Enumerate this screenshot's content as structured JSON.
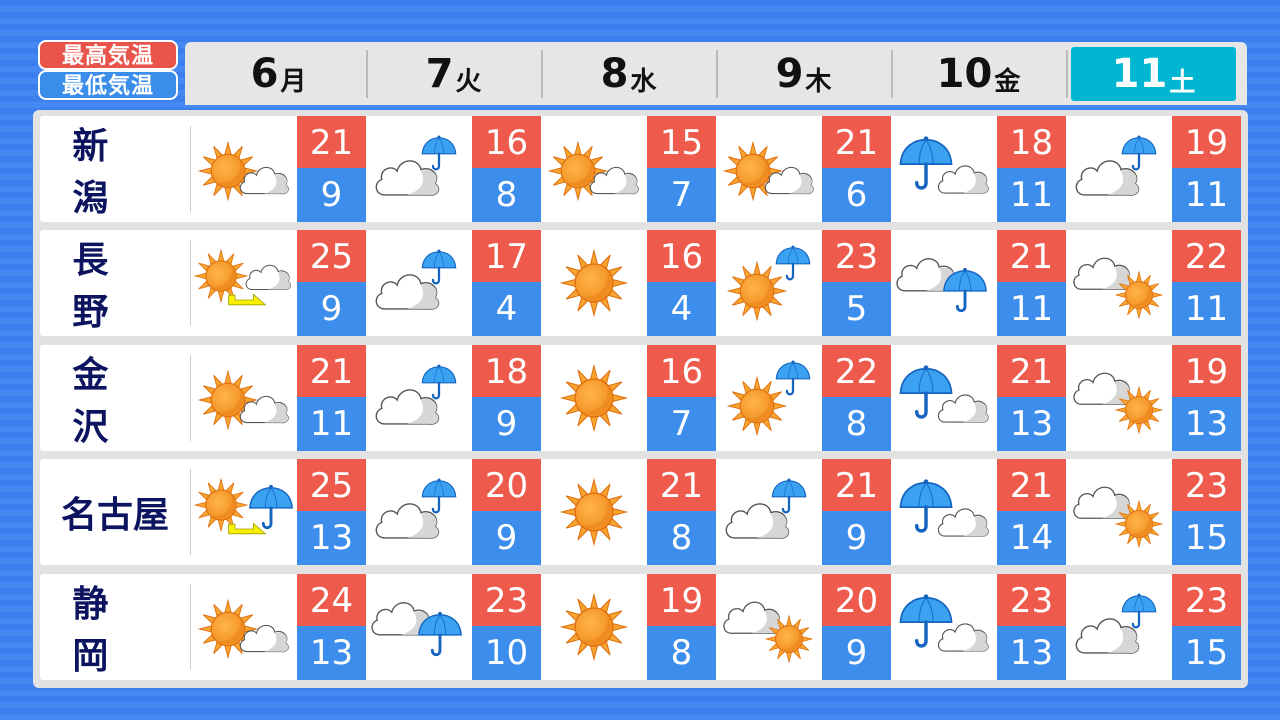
{
  "legend": {
    "max_label": "最高気温",
    "min_label": "最低気温"
  },
  "days": [
    {
      "num": "6",
      "wd": "月"
    },
    {
      "num": "7",
      "wd": "火"
    },
    {
      "num": "8",
      "wd": "水"
    },
    {
      "num": "9",
      "wd": "木"
    },
    {
      "num": "10",
      "wd": "金"
    },
    {
      "num": "11",
      "wd": "土",
      "selected": true
    }
  ],
  "colors": {
    "max": "#ee5a4c",
    "min": "#3d8eec",
    "selected_day": "#00b6d2",
    "city_text": "#0c1460"
  },
  "cities": [
    {
      "name": "新潟",
      "forecast": [
        {
          "icon": "sunny-cloudy",
          "max": "21",
          "min": "9"
        },
        {
          "icon": "cloudy-rain",
          "max": "16",
          "min": "8"
        },
        {
          "icon": "sunny-cloudy",
          "max": "15",
          "min": "7"
        },
        {
          "icon": "sunny-cloudy",
          "max": "21",
          "min": "6"
        },
        {
          "icon": "rain-cloudy",
          "max": "18",
          "min": "11"
        },
        {
          "icon": "cloudy-rain",
          "max": "19",
          "min": "11"
        }
      ]
    },
    {
      "name": "長野",
      "forecast": [
        {
          "icon": "sunny-then-cloudy",
          "max": "25",
          "min": "9"
        },
        {
          "icon": "cloudy-rain",
          "max": "17",
          "min": "4"
        },
        {
          "icon": "sunny",
          "max": "16",
          "min": "4"
        },
        {
          "icon": "sunny-rain",
          "max": "23",
          "min": "5"
        },
        {
          "icon": "cloudy-rain-large",
          "max": "21",
          "min": "11"
        },
        {
          "icon": "cloudy-sunny",
          "max": "22",
          "min": "11"
        }
      ]
    },
    {
      "name": "金沢",
      "forecast": [
        {
          "icon": "sunny-cloudy",
          "max": "21",
          "min": "11"
        },
        {
          "icon": "cloudy-rain",
          "max": "18",
          "min": "9"
        },
        {
          "icon": "sunny",
          "max": "16",
          "min": "7"
        },
        {
          "icon": "sunny-rain",
          "max": "22",
          "min": "8"
        },
        {
          "icon": "rain-cloudy",
          "max": "21",
          "min": "13"
        },
        {
          "icon": "cloudy-sunny",
          "max": "19",
          "min": "13"
        }
      ]
    },
    {
      "name": "名古屋",
      "forecast": [
        {
          "icon": "sunny-then-rain",
          "max": "25",
          "min": "13"
        },
        {
          "icon": "cloudy-rain",
          "max": "20",
          "min": "9"
        },
        {
          "icon": "sunny",
          "max": "21",
          "min": "8"
        },
        {
          "icon": "cloudy-rain",
          "max": "21",
          "min": "9"
        },
        {
          "icon": "rain-cloudy",
          "max": "21",
          "min": "14"
        },
        {
          "icon": "cloudy-sunny",
          "max": "23",
          "min": "15"
        }
      ]
    },
    {
      "name": "静岡",
      "forecast": [
        {
          "icon": "sunny-cloudy",
          "max": "24",
          "min": "13"
        },
        {
          "icon": "cloudy-rain-large",
          "max": "23",
          "min": "10"
        },
        {
          "icon": "sunny",
          "max": "19",
          "min": "8"
        },
        {
          "icon": "cloudy-sunny",
          "max": "20",
          "min": "9"
        },
        {
          "icon": "rain-cloudy",
          "max": "23",
          "min": "13"
        },
        {
          "icon": "cloudy-rain",
          "max": "23",
          "min": "15"
        }
      ]
    }
  ]
}
